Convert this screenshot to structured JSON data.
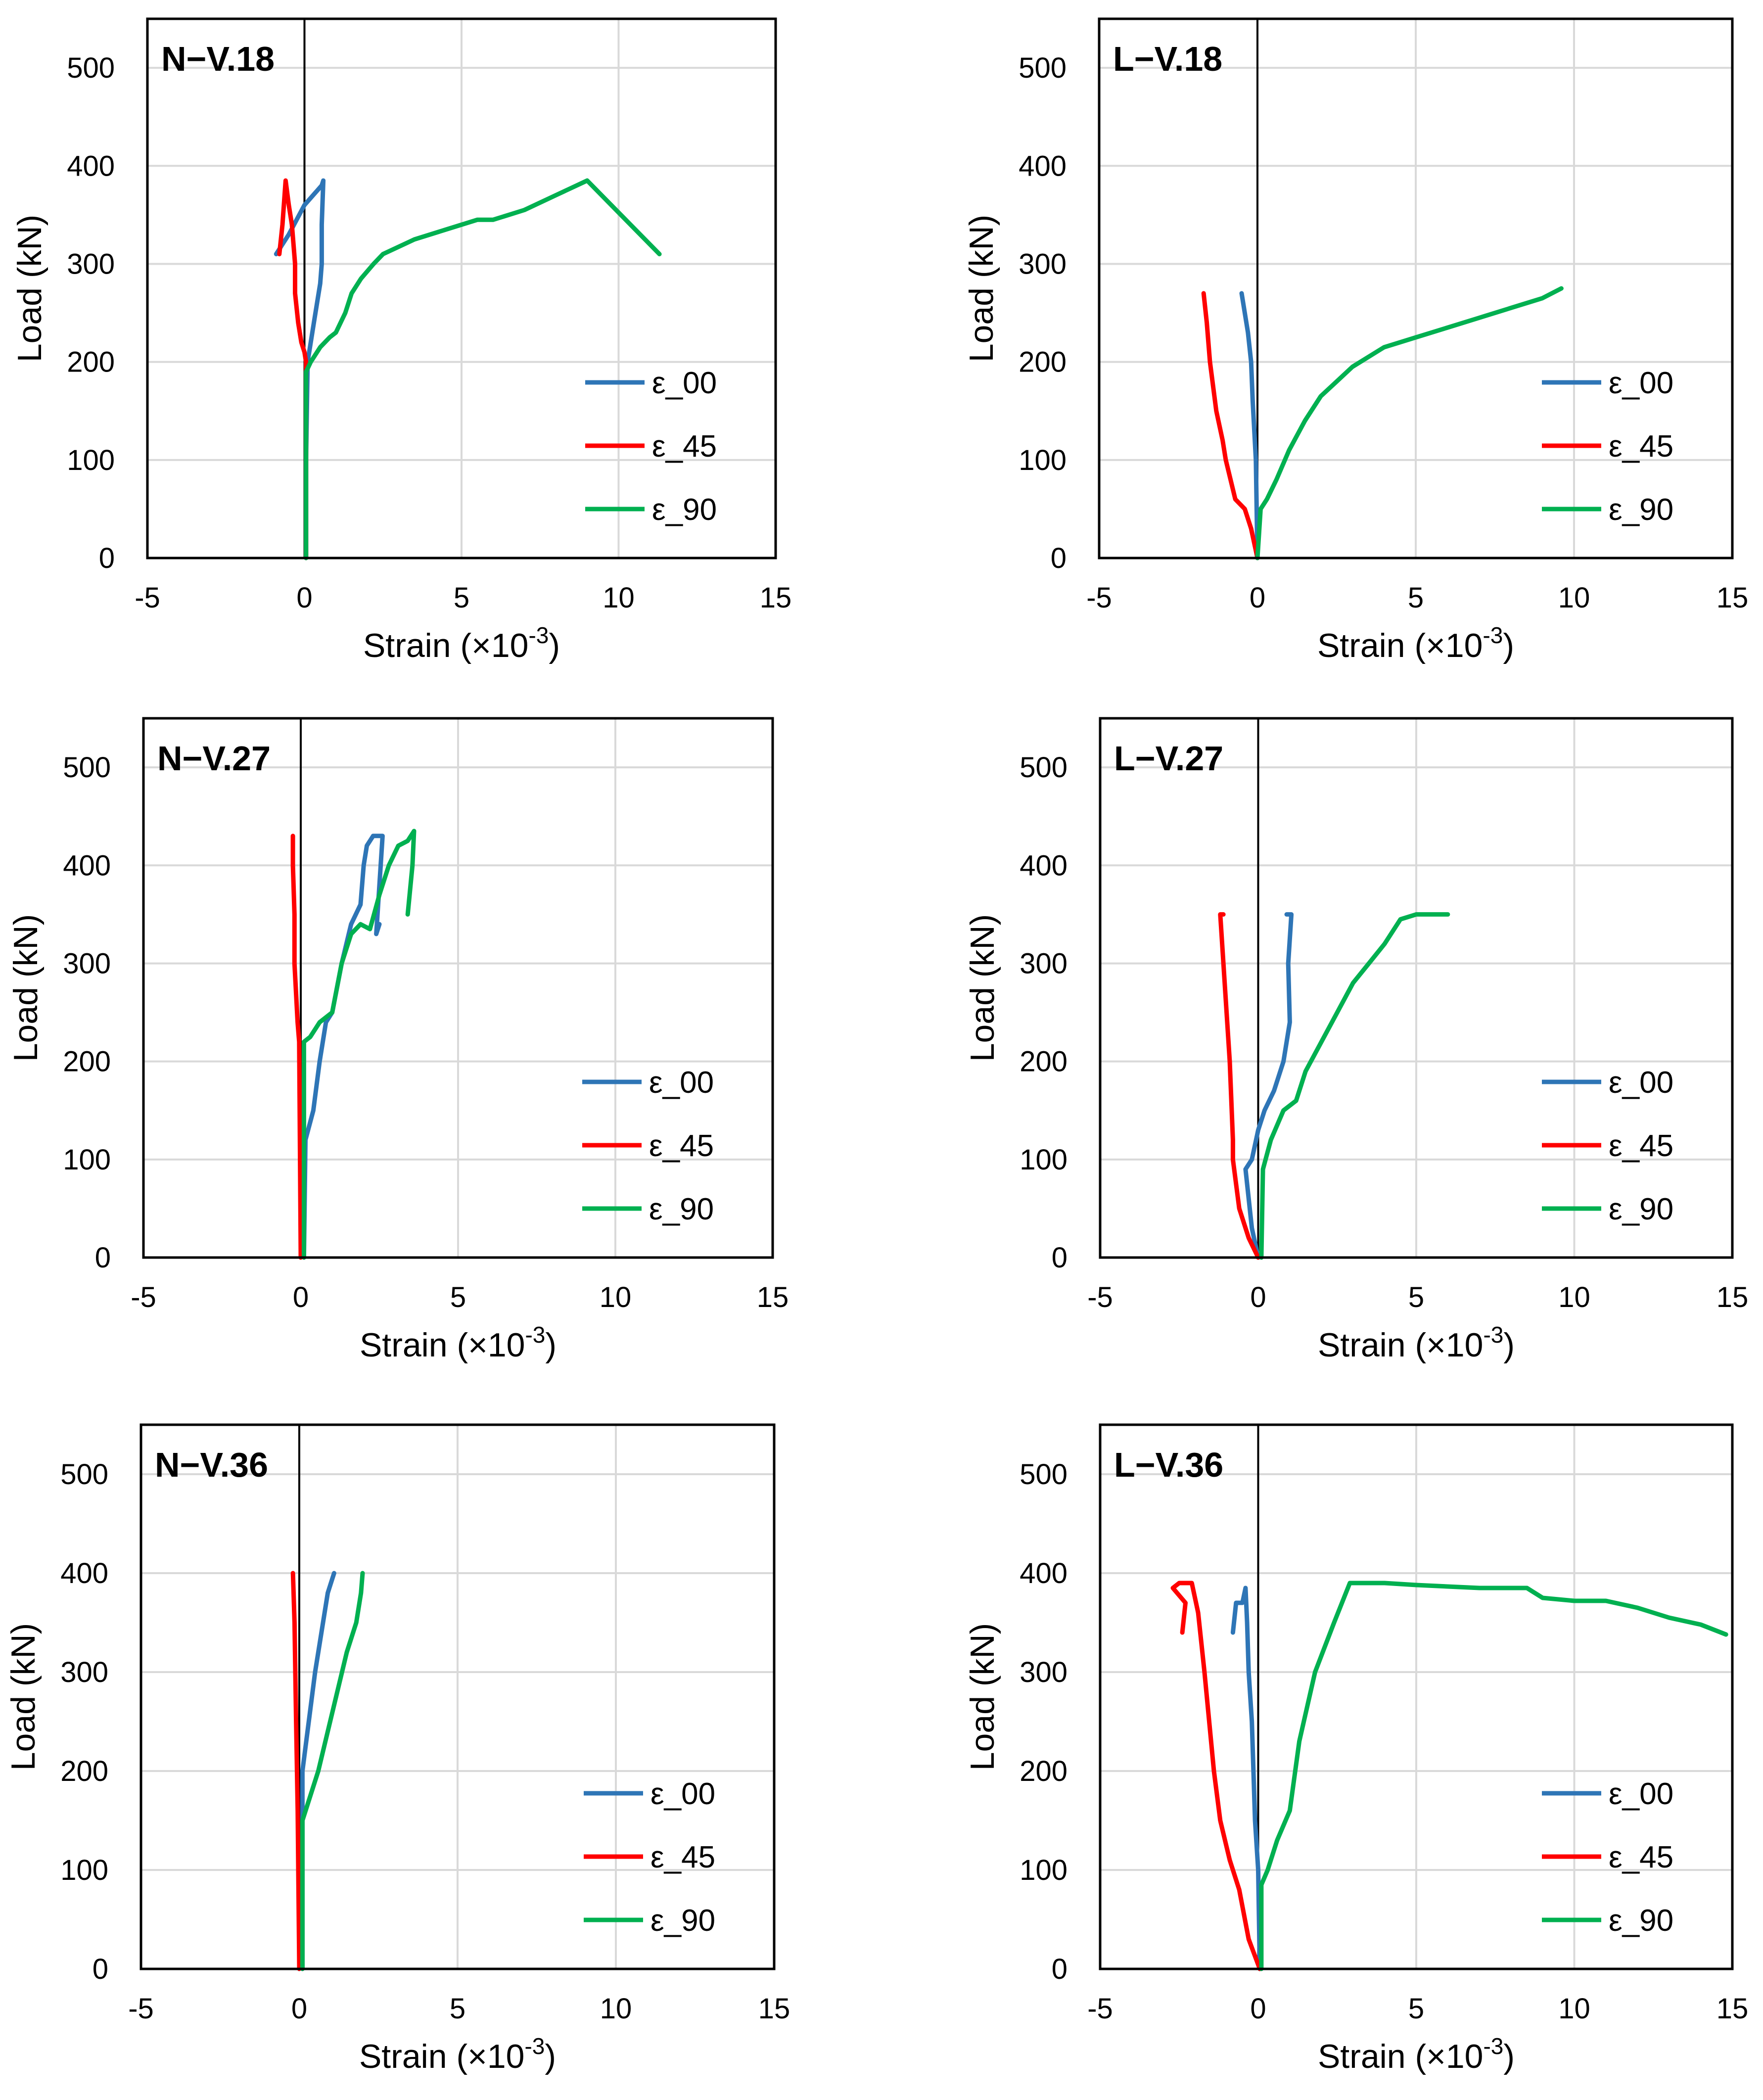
{
  "colors": {
    "eps00": "#2e75b6",
    "eps45": "#ff0000",
    "eps90": "#00b050",
    "grid": "#d9d9d9",
    "frame": "#000000"
  },
  "chart_data": [
    {
      "type": "line",
      "title": "N−V.18",
      "xlabel": "Strain (×10",
      "xlabel_exp": "-3",
      "xlabel_close": ")",
      "ylabel": "Load (kN)",
      "xlim": [
        -5,
        15
      ],
      "ylim": [
        0,
        550
      ],
      "xticks": [
        "-5",
        "0",
        "5",
        "10",
        "15"
      ],
      "yticks": [
        "0",
        "100",
        "200",
        "300",
        "400",
        "500"
      ],
      "xtick_values": [
        -5,
        0,
        5,
        10,
        15
      ],
      "ytick_values": [
        0,
        100,
        200,
        300,
        400,
        500
      ],
      "grid": true,
      "legend": "lower-right",
      "series": [
        {
          "name": "ε_00",
          "color": "#2e75b6",
          "x": [
            0.05,
            0.05,
            0.1,
            0.2,
            0.3,
            0.4,
            0.5,
            0.55,
            0.55,
            0.6,
            0.55,
            0.0,
            -0.5,
            -0.9
          ],
          "y": [
            0,
            100,
            200,
            220,
            240,
            260,
            280,
            300,
            340,
            385,
            380,
            360,
            330,
            310
          ]
        },
        {
          "name": "ε_45",
          "color": "#ff0000",
          "x": [
            0.05,
            0.05,
            0.0,
            -0.1,
            -0.2,
            -0.3,
            -0.3,
            -0.4,
            -0.5,
            -0.6,
            -0.7,
            -0.8
          ],
          "y": [
            0,
            200,
            210,
            220,
            240,
            270,
            300,
            340,
            360,
            385,
            340,
            310
          ]
        },
        {
          "name": "ε_90",
          "color": "#00b050",
          "x": [
            0.05,
            0.05,
            0.2,
            0.5,
            0.8,
            1.0,
            1.3,
            1.5,
            1.8,
            2.2,
            2.5,
            3.5,
            4.5,
            5.5,
            6.0,
            6.5,
            7.0,
            8.0,
            9.0,
            11.3
          ],
          "y": [
            0,
            190,
            200,
            215,
            225,
            230,
            250,
            270,
            285,
            300,
            310,
            325,
            335,
            345,
            345,
            350,
            355,
            370,
            385,
            310
          ]
        }
      ]
    },
    {
      "type": "line",
      "title": "L−V.18",
      "xlabel": "Strain (×10",
      "xlabel_exp": "-3",
      "xlabel_close": ")",
      "ylabel": "Load (kN)",
      "xlim": [
        -5,
        15
      ],
      "ylim": [
        0,
        550
      ],
      "xticks": [
        "-5",
        "0",
        "5",
        "10",
        "15"
      ],
      "yticks": [
        "0",
        "100",
        "200",
        "300",
        "400",
        "500"
      ],
      "xtick_values": [
        -5,
        0,
        5,
        10,
        15
      ],
      "ytick_values": [
        0,
        100,
        200,
        300,
        400,
        500
      ],
      "grid": true,
      "legend": "lower-right",
      "series": [
        {
          "name": "ε_00",
          "color": "#2e75b6",
          "x": [
            0.0,
            -0.05,
            -0.1,
            -0.15,
            -0.2,
            -0.3,
            -0.4,
            -0.5
          ],
          "y": [
            0,
            100,
            130,
            160,
            200,
            230,
            250,
            270
          ]
        },
        {
          "name": "ε_45",
          "color": "#ff0000",
          "x": [
            0.0,
            -0.2,
            -0.4,
            -0.7,
            -1.0,
            -1.1,
            -1.3,
            -1.5,
            -1.6,
            -1.7
          ],
          "y": [
            0,
            30,
            50,
            60,
            100,
            120,
            150,
            200,
            240,
            270
          ]
        },
        {
          "name": "ε_90",
          "color": "#00b050",
          "x": [
            0.0,
            0.1,
            0.3,
            0.6,
            1.0,
            1.5,
            2.0,
            2.5,
            3.0,
            4.0,
            5.0,
            6.0,
            7.0,
            8.0,
            9.0,
            9.6
          ],
          "y": [
            0,
            50,
            60,
            80,
            110,
            140,
            165,
            180,
            195,
            215,
            225,
            235,
            245,
            255,
            265,
            275
          ]
        }
      ]
    },
    {
      "type": "line",
      "title": "N−V.27",
      "xlabel": "Strain (×10",
      "xlabel_exp": "-3",
      "xlabel_close": ")",
      "ylabel": "Load (kN)",
      "xlim": [
        -5,
        15
      ],
      "ylim": [
        0,
        550
      ],
      "xticks": [
        "-5",
        "0",
        "5",
        "10",
        "15"
      ],
      "yticks": [
        "0",
        "100",
        "200",
        "300",
        "400",
        "500"
      ],
      "xtick_values": [
        -5,
        0,
        5,
        10,
        15
      ],
      "ytick_values": [
        0,
        100,
        200,
        300,
        400,
        500
      ],
      "grid": true,
      "legend": "lower-right",
      "series": [
        {
          "name": "ε_00",
          "color": "#2e75b6",
          "x": [
            0.1,
            0.15,
            0.4,
            0.6,
            0.8,
            1.0,
            1.3,
            1.6,
            1.9,
            2.0,
            2.1,
            2.3,
            2.6,
            2.4,
            2.5
          ],
          "y": [
            0,
            120,
            150,
            200,
            240,
            250,
            300,
            340,
            360,
            400,
            420,
            430,
            430,
            330,
            340
          ]
        },
        {
          "name": "ε_45",
          "color": "#ff0000",
          "x": [
            0.0,
            -0.05,
            -0.1,
            -0.2,
            -0.2,
            -0.25,
            -0.25
          ],
          "y": [
            0,
            220,
            240,
            300,
            350,
            400,
            430
          ]
        },
        {
          "name": "ε_90",
          "color": "#00b050",
          "x": [
            0.1,
            0.1,
            0.3,
            0.6,
            1.0,
            1.3,
            1.6,
            1.9,
            2.2,
            2.5,
            2.8,
            3.1,
            3.4,
            3.6,
            3.55,
            3.4
          ],
          "y": [
            0,
            220,
            225,
            240,
            250,
            300,
            330,
            340,
            335,
            370,
            400,
            420,
            425,
            435,
            400,
            350
          ]
        }
      ]
    },
    {
      "type": "line",
      "title": "L−V.27",
      "xlabel": "Strain (×10",
      "xlabel_exp": "-3",
      "xlabel_close": ")",
      "ylabel": "Load (kN)",
      "xlim": [
        -5,
        15
      ],
      "ylim": [
        0,
        550
      ],
      "xticks": [
        "-5",
        "0",
        "5",
        "10",
        "15"
      ],
      "yticks": [
        "0",
        "100",
        "200",
        "300",
        "400",
        "500"
      ],
      "xtick_values": [
        -5,
        0,
        5,
        10,
        15
      ],
      "ytick_values": [
        0,
        100,
        200,
        300,
        400,
        500
      ],
      "grid": true,
      "legend": "lower-right",
      "series": [
        {
          "name": "ε_00",
          "color": "#2e75b6",
          "x": [
            0.0,
            -0.2,
            -0.3,
            -0.4,
            -0.2,
            0.0,
            0.2,
            0.5,
            0.8,
            1.0,
            0.95,
            1.05,
            0.9
          ],
          "y": [
            0,
            30,
            60,
            90,
            100,
            130,
            150,
            170,
            200,
            240,
            300,
            350,
            350
          ]
        },
        {
          "name": "ε_45",
          "color": "#ff0000",
          "x": [
            0.0,
            -0.3,
            -0.6,
            -0.8,
            -0.8,
            -0.9,
            -1.0,
            -1.1,
            -1.2,
            -1.1
          ],
          "y": [
            0,
            20,
            50,
            100,
            120,
            200,
            250,
            300,
            350,
            350
          ]
        },
        {
          "name": "ε_90",
          "color": "#00b050",
          "x": [
            0.1,
            0.15,
            0.4,
            0.8,
            1.2,
            1.5,
            2.0,
            2.5,
            3.0,
            3.5,
            4.0,
            4.5,
            5.0,
            5.5,
            6.0
          ],
          "y": [
            0,
            90,
            120,
            150,
            160,
            190,
            220,
            250,
            280,
            300,
            320,
            345,
            350,
            350,
            350
          ]
        }
      ]
    },
    {
      "type": "line",
      "title": "N−V.36",
      "xlabel": "Strain (×10",
      "xlabel_exp": "-3",
      "xlabel_close": ")",
      "ylabel": "Load (kN)",
      "xlim": [
        -5,
        15
      ],
      "ylim": [
        0,
        550
      ],
      "xticks": [
        "-5",
        "0",
        "5",
        "10",
        "15"
      ],
      "yticks": [
        "0",
        "100",
        "200",
        "300",
        "400",
        "500"
      ],
      "xtick_values": [
        -5,
        0,
        5,
        10,
        15
      ],
      "ytick_values": [
        0,
        100,
        200,
        300,
        400,
        500
      ],
      "grid": true,
      "legend": "lower-right",
      "series": [
        {
          "name": "ε_00",
          "color": "#2e75b6",
          "x": [
            0.1,
            0.1,
            0.3,
            0.5,
            0.7,
            0.9,
            1.1
          ],
          "y": [
            0,
            200,
            250,
            300,
            340,
            380,
            400
          ]
        },
        {
          "name": "ε_45",
          "color": "#ff0000",
          "x": [
            0.0,
            -0.05,
            -0.1,
            -0.15,
            -0.2
          ],
          "y": [
            0,
            160,
            250,
            350,
            400
          ]
        },
        {
          "name": "ε_90",
          "color": "#00b050",
          "x": [
            0.1,
            0.1,
            0.3,
            0.6,
            0.9,
            1.2,
            1.5,
            1.8,
            1.95,
            2.0
          ],
          "y": [
            0,
            150,
            170,
            200,
            240,
            280,
            320,
            350,
            380,
            400
          ]
        }
      ]
    },
    {
      "type": "line",
      "title": "L−V.36",
      "xlabel": "Strain (×10",
      "xlabel_exp": "-3",
      "xlabel_close": ")",
      "ylabel": "Load (kN)",
      "xlim": [
        -5,
        15
      ],
      "ylim": [
        0,
        550
      ],
      "xticks": [
        "-5",
        "0",
        "5",
        "10",
        "15"
      ],
      "yticks": [
        "0",
        "100",
        "200",
        "300",
        "400",
        "500"
      ],
      "xtick_values": [
        -5,
        0,
        5,
        10,
        15
      ],
      "ytick_values": [
        0,
        100,
        200,
        300,
        400,
        500
      ],
      "grid": true,
      "legend": "lower-right",
      "series": [
        {
          "name": "ε_00",
          "color": "#2e75b6",
          "x": [
            0.05,
            0.0,
            -0.1,
            -0.2,
            -0.3,
            -0.35,
            -0.4,
            -0.5,
            -0.7,
            -0.8
          ],
          "y": [
            0,
            100,
            150,
            250,
            300,
            350,
            385,
            370,
            370,
            340
          ]
        },
        {
          "name": "ε_45",
          "color": "#ff0000",
          "x": [
            0.05,
            -0.3,
            -0.6,
            -0.9,
            -1.2,
            -1.4,
            -1.7,
            -1.9,
            -2.1,
            -2.5,
            -2.7,
            -2.3,
            -2.4
          ],
          "y": [
            0,
            30,
            80,
            110,
            150,
            200,
            300,
            360,
            390,
            390,
            385,
            370,
            340
          ]
        },
        {
          "name": "ε_90",
          "color": "#00b050",
          "x": [
            0.1,
            0.1,
            0.3,
            0.6,
            1.0,
            1.3,
            1.8,
            2.4,
            2.9,
            4.0,
            5.0,
            7.0,
            8.5,
            9.0,
            10.0,
            11.0,
            12.0,
            13.0,
            14.0,
            14.8
          ],
          "y": [
            0,
            85,
            100,
            130,
            160,
            230,
            300,
            350,
            390,
            390,
            388,
            385,
            385,
            375,
            372,
            372,
            365,
            355,
            348,
            338
          ]
        }
      ]
    }
  ]
}
